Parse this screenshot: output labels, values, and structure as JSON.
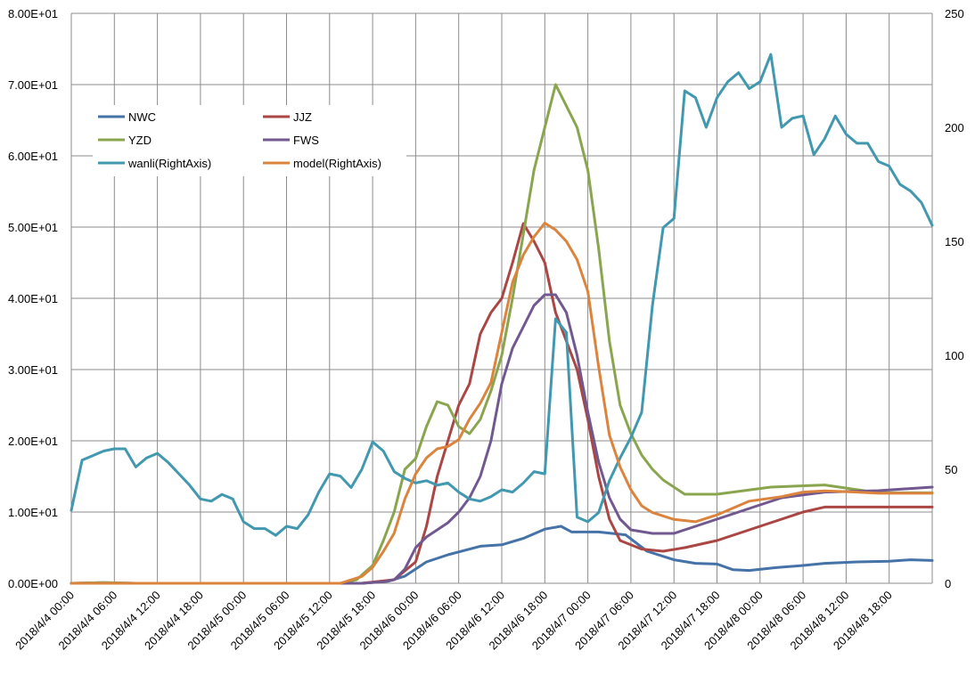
{
  "chart_data": {
    "type": "line",
    "title": "",
    "xlabel": "",
    "ylabel": "",
    "ylim": [
      0,
      80
    ],
    "y2lim": [
      0,
      250
    ],
    "grid": true,
    "legend_position": "top-left",
    "left_tick_labels": [
      "0.00E+00",
      "1.00E+01",
      "2.00E+01",
      "3.00E+01",
      "4.00E+01",
      "5.00E+01",
      "6.00E+01",
      "7.00E+01",
      "8.00E+01"
    ],
    "right_tick_labels": [
      "0",
      "50",
      "100",
      "150",
      "200",
      "250"
    ],
    "x_tick_labels": [
      "2018/4/4 00:00",
      "2018/4/4 06:00",
      "2018/4/4 12:00",
      "2018/4/4 18:00",
      "2018/4/5 00:00",
      "2018/4/5 06:00",
      "2018/4/5 12:00",
      "2018/4/5 18:00",
      "2018/4/6 00:00",
      "2018/4/6 06:00",
      "2018/4/6 12:00",
      "2018/4/6 18:00",
      "2018/4/7 00:00",
      "2018/4/7 06:00",
      "2018/4/7 12:00",
      "2018/4/7 18:00",
      "2018/4/8 00:00",
      "2018/4/8 06:00",
      "2018/4/8 12:00",
      "2018/4/8 18:00"
    ],
    "x_start": "2018/4/4 00:00",
    "x_step_hours": 1,
    "series": [
      {
        "name": "NWC",
        "axis": "left",
        "color": "#4572a7",
        "points": [
          [
            0,
            0
          ],
          [
            6,
            0.1
          ],
          [
            12,
            0
          ],
          [
            54,
            0
          ],
          [
            59,
            0.3
          ],
          [
            62,
            1
          ],
          [
            66,
            3
          ],
          [
            70,
            4
          ],
          [
            76,
            5.2
          ],
          [
            80,
            5.4
          ],
          [
            84,
            6.3
          ],
          [
            88,
            7.6
          ],
          [
            91,
            8
          ],
          [
            93,
            7.2
          ],
          [
            98,
            7.2
          ],
          [
            103,
            6.8
          ],
          [
            107,
            4.5
          ],
          [
            112,
            3.3
          ],
          [
            116,
            2.8
          ],
          [
            120,
            2.7
          ],
          [
            123,
            1.9
          ],
          [
            126,
            1.8
          ],
          [
            131,
            2.2
          ],
          [
            136,
            2.5
          ],
          [
            140,
            2.8
          ],
          [
            146,
            3
          ],
          [
            152,
            3.1
          ],
          [
            156,
            3.3
          ],
          [
            160,
            3.2
          ]
        ]
      },
      {
        "name": "JJZ",
        "axis": "left",
        "color": "#aa4643",
        "points": [
          [
            0,
            0
          ],
          [
            54,
            0
          ],
          [
            60,
            0.5
          ],
          [
            64,
            3
          ],
          [
            66,
            8
          ],
          [
            68,
            15
          ],
          [
            70,
            20
          ],
          [
            72,
            25
          ],
          [
            74,
            28
          ],
          [
            76,
            35
          ],
          [
            78,
            38
          ],
          [
            80,
            40
          ],
          [
            82,
            45
          ],
          [
            84,
            50.5
          ],
          [
            86,
            48
          ],
          [
            88,
            45
          ],
          [
            90,
            38
          ],
          [
            92,
            34
          ],
          [
            94,
            30
          ],
          [
            96,
            23
          ],
          [
            98,
            15
          ],
          [
            100,
            9
          ],
          [
            102,
            6
          ],
          [
            106,
            4.8
          ],
          [
            110,
            4.5
          ],
          [
            114,
            5
          ],
          [
            120,
            6
          ],
          [
            128,
            8
          ],
          [
            136,
            10
          ],
          [
            140,
            10.7
          ],
          [
            160,
            10.7
          ]
        ]
      },
      {
        "name": "YZD",
        "axis": "left",
        "color": "#89a54e",
        "points": [
          [
            0,
            0
          ],
          [
            6,
            0.1
          ],
          [
            12,
            0
          ],
          [
            50,
            0
          ],
          [
            53,
            0.5
          ],
          [
            56,
            2.5
          ],
          [
            58,
            6
          ],
          [
            60,
            10
          ],
          [
            62,
            16
          ],
          [
            64,
            17.5
          ],
          [
            66,
            22
          ],
          [
            68,
            25.5
          ],
          [
            70,
            25
          ],
          [
            72,
            22
          ],
          [
            74,
            21
          ],
          [
            76,
            23
          ],
          [
            78,
            27
          ],
          [
            80,
            32
          ],
          [
            82,
            40
          ],
          [
            84,
            49
          ],
          [
            86,
            58
          ],
          [
            88,
            64
          ],
          [
            90,
            70
          ],
          [
            92,
            67
          ],
          [
            94,
            64
          ],
          [
            96,
            58
          ],
          [
            98,
            47
          ],
          [
            100,
            34
          ],
          [
            102,
            25
          ],
          [
            104,
            21
          ],
          [
            106,
            18
          ],
          [
            108,
            16
          ],
          [
            110,
            14.5
          ],
          [
            114,
            12.5
          ],
          [
            120,
            12.5
          ],
          [
            130,
            13.5
          ],
          [
            140,
            13.8
          ],
          [
            150,
            12.7
          ],
          [
            160,
            12.7
          ]
        ]
      },
      {
        "name": "FWS",
        "axis": "left",
        "color": "#71588f",
        "points": [
          [
            0,
            0
          ],
          [
            54,
            0
          ],
          [
            58,
            0.2
          ],
          [
            60,
            0.5
          ],
          [
            62,
            2
          ],
          [
            64,
            5
          ],
          [
            66,
            6.5
          ],
          [
            68,
            7.5
          ],
          [
            70,
            8.5
          ],
          [
            72,
            10
          ],
          [
            74,
            12
          ],
          [
            76,
            15
          ],
          [
            78,
            20
          ],
          [
            80,
            28
          ],
          [
            82,
            33
          ],
          [
            84,
            36
          ],
          [
            86,
            39
          ],
          [
            88,
            40.5
          ],
          [
            90,
            40.5
          ],
          [
            92,
            38
          ],
          [
            94,
            32
          ],
          [
            96,
            24
          ],
          [
            98,
            17
          ],
          [
            100,
            12
          ],
          [
            102,
            9
          ],
          [
            104,
            7.5
          ],
          [
            108,
            7
          ],
          [
            112,
            7
          ],
          [
            116,
            8
          ],
          [
            120,
            9
          ],
          [
            126,
            10.5
          ],
          [
            132,
            12
          ],
          [
            140,
            12.8
          ],
          [
            150,
            13
          ],
          [
            160,
            13.5
          ]
        ]
      },
      {
        "name": "wanli(RightAxis)",
        "axis": "right",
        "color": "#4198af",
        "points": [
          [
            0,
            32
          ],
          [
            2,
            54
          ],
          [
            4,
            56
          ],
          [
            6,
            58
          ],
          [
            8,
            59
          ],
          [
            10,
            59
          ],
          [
            12,
            51
          ],
          [
            14,
            55
          ],
          [
            16,
            57
          ],
          [
            18,
            53
          ],
          [
            20,
            48
          ],
          [
            22,
            43
          ],
          [
            24,
            37
          ],
          [
            26,
            36
          ],
          [
            28,
            39
          ],
          [
            30,
            37
          ],
          [
            32,
            27
          ],
          [
            34,
            24
          ],
          [
            36,
            24
          ],
          [
            38,
            21
          ],
          [
            40,
            25
          ],
          [
            42,
            24
          ],
          [
            44,
            30
          ],
          [
            46,
            40
          ],
          [
            48,
            48
          ],
          [
            50,
            47
          ],
          [
            52,
            42
          ],
          [
            54,
            50
          ],
          [
            56,
            62
          ],
          [
            58,
            58
          ],
          [
            60,
            49
          ],
          [
            62,
            46
          ],
          [
            64,
            44
          ],
          [
            66,
            45
          ],
          [
            68,
            43
          ],
          [
            70,
            44
          ],
          [
            72,
            40
          ],
          [
            74,
            37
          ],
          [
            76,
            36
          ],
          [
            78,
            38
          ],
          [
            80,
            41
          ],
          [
            82,
            40
          ],
          [
            84,
            44
          ],
          [
            86,
            49
          ],
          [
            88,
            48
          ],
          [
            90,
            116
          ],
          [
            92,
            110
          ],
          [
            94,
            29
          ],
          [
            96,
            27
          ],
          [
            98,
            31
          ],
          [
            100,
            45
          ],
          [
            102,
            55
          ],
          [
            104,
            64
          ],
          [
            106,
            75
          ],
          [
            108,
            122
          ],
          [
            110,
            156
          ],
          [
            112,
            160
          ],
          [
            114,
            216
          ],
          [
            116,
            213
          ],
          [
            118,
            200
          ],
          [
            120,
            213
          ],
          [
            122,
            220
          ],
          [
            124,
            224
          ],
          [
            126,
            217
          ],
          [
            128,
            220
          ],
          [
            130,
            232
          ],
          [
            132,
            200
          ],
          [
            134,
            204
          ],
          [
            136,
            205
          ],
          [
            138,
            188
          ],
          [
            140,
            195
          ],
          [
            142,
            205
          ],
          [
            144,
            197
          ],
          [
            146,
            193
          ],
          [
            148,
            193
          ],
          [
            150,
            185
          ],
          [
            152,
            183
          ],
          [
            154,
            175
          ],
          [
            156,
            172
          ],
          [
            158,
            167
          ],
          [
            160,
            157
          ]
        ]
      },
      {
        "name": "model(RightAxis)",
        "axis": "right",
        "color": "#db843d",
        "points": [
          [
            0,
            0
          ],
          [
            50,
            0
          ],
          [
            54,
            3
          ],
          [
            56,
            7
          ],
          [
            58,
            14
          ],
          [
            60,
            22
          ],
          [
            62,
            37
          ],
          [
            64,
            48
          ],
          [
            66,
            55
          ],
          [
            68,
            59
          ],
          [
            70,
            60
          ],
          [
            72,
            63
          ],
          [
            74,
            72
          ],
          [
            76,
            79
          ],
          [
            78,
            88
          ],
          [
            80,
            110
          ],
          [
            82,
            132
          ],
          [
            84,
            144
          ],
          [
            86,
            152
          ],
          [
            88,
            158
          ],
          [
            90,
            155
          ],
          [
            92,
            150
          ],
          [
            94,
            142
          ],
          [
            96,
            128
          ],
          [
            98,
            95
          ],
          [
            100,
            65
          ],
          [
            102,
            51
          ],
          [
            104,
            41
          ],
          [
            106,
            34
          ],
          [
            108,
            31
          ],
          [
            112,
            28
          ],
          [
            116,
            27
          ],
          [
            120,
            30
          ],
          [
            126,
            36
          ],
          [
            132,
            38
          ],
          [
            136,
            40
          ],
          [
            140,
            40.5
          ],
          [
            146,
            40
          ],
          [
            150,
            39.5
          ],
          [
            160,
            39.5
          ]
        ]
      }
    ]
  }
}
